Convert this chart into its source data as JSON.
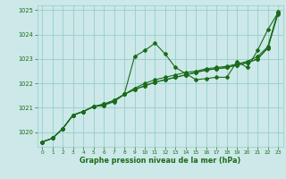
{
  "bg_color": "#cce8e8",
  "grid_color": "#99cccc",
  "line_color": "#1a6b1a",
  "xlabel": "Graphe pression niveau de la mer (hPa)",
  "ylim": [
    1019.4,
    1025.2
  ],
  "xlim": [
    -0.5,
    23.5
  ],
  "yticks": [
    1020,
    1021,
    1022,
    1023,
    1024,
    1025
  ],
  "xticks": [
    0,
    1,
    2,
    3,
    4,
    5,
    6,
    7,
    8,
    9,
    10,
    11,
    12,
    13,
    14,
    15,
    16,
    17,
    18,
    19,
    20,
    21,
    22,
    23
  ],
  "series": [
    [
      1019.6,
      1019.75,
      1020.15,
      1020.7,
      1020.85,
      1021.05,
      1021.1,
      1021.25,
      1021.55,
      1023.1,
      1023.35,
      1023.65,
      1023.2,
      1022.65,
      1022.4,
      1022.15,
      1022.2,
      1022.25,
      1022.25,
      1022.9,
      1022.65,
      1023.35,
      1024.2,
      1024.9
    ],
    [
      1019.6,
      1019.75,
      1020.15,
      1020.7,
      1020.85,
      1021.05,
      1021.1,
      1021.3,
      1021.55,
      1021.75,
      1021.9,
      1022.05,
      1022.15,
      1022.25,
      1022.35,
      1022.45,
      1022.55,
      1022.6,
      1022.65,
      1022.75,
      1022.85,
      1023.0,
      1023.45,
      1024.9
    ],
    [
      1019.6,
      1019.75,
      1020.15,
      1020.7,
      1020.85,
      1021.05,
      1021.15,
      1021.3,
      1021.55,
      1021.75,
      1021.9,
      1022.05,
      1022.15,
      1022.25,
      1022.35,
      1022.45,
      1022.55,
      1022.6,
      1022.65,
      1022.75,
      1022.85,
      1023.0,
      1023.45,
      1024.85
    ],
    [
      1019.6,
      1019.75,
      1020.15,
      1020.7,
      1020.85,
      1021.05,
      1021.15,
      1021.3,
      1021.55,
      1021.8,
      1022.0,
      1022.15,
      1022.25,
      1022.35,
      1022.45,
      1022.5,
      1022.6,
      1022.65,
      1022.7,
      1022.8,
      1022.9,
      1023.1,
      1023.5,
      1024.95
    ]
  ]
}
